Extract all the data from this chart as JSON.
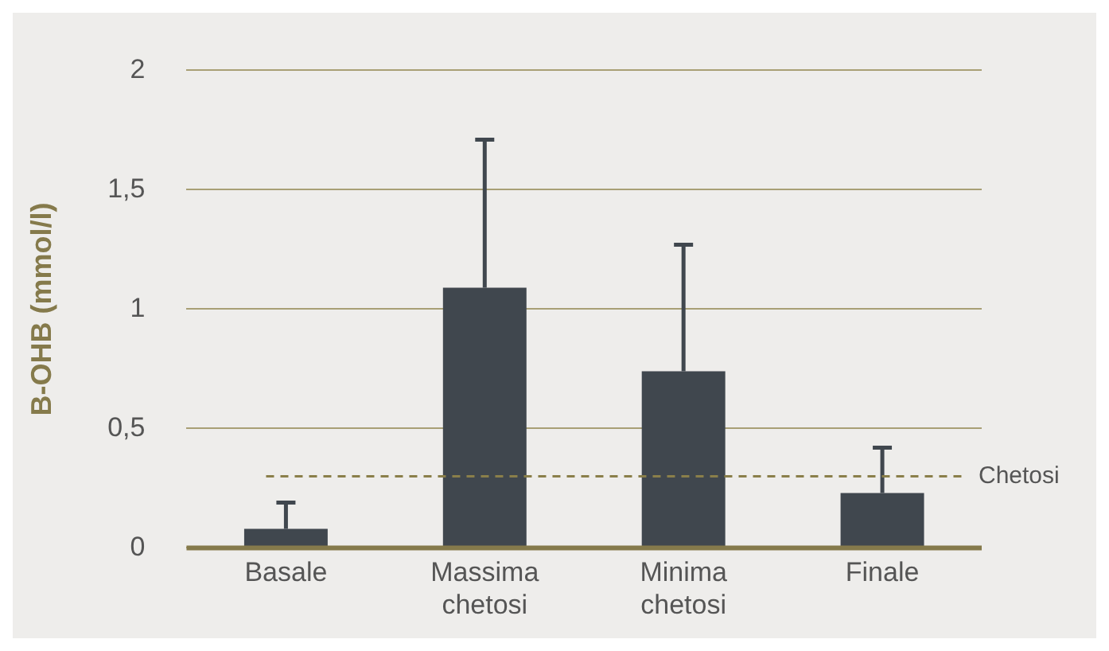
{
  "chart_data": {
    "type": "bar",
    "ylabel": "B-OHB (mmol/l)",
    "categories": [
      "Basale",
      "Massima chetosi",
      "Minima chetosi",
      "Finale"
    ],
    "values": [
      0.08,
      1.09,
      0.74,
      0.23
    ],
    "color": "#40474e",
    "errors": [
      [
        0.08,
        0.19
      ],
      [
        1.09,
        1.71
      ],
      [
        0.74,
        1.27
      ],
      [
        0.23,
        0.42
      ]
    ],
    "ylim": [
      0,
      2
    ],
    "yticks": [
      0,
      {
        "value": 0.5,
        "label": "0,5"
      },
      1,
      {
        "value": 1.5,
        "label": "1,5"
      },
      2
    ],
    "grid": "y",
    "legend": false,
    "ref_lines": [
      {
        "axis": "y",
        "value": 0.3,
        "label": "Chetosi",
        "color": "#8a7f4a",
        "line_style": "dashed"
      }
    ]
  }
}
